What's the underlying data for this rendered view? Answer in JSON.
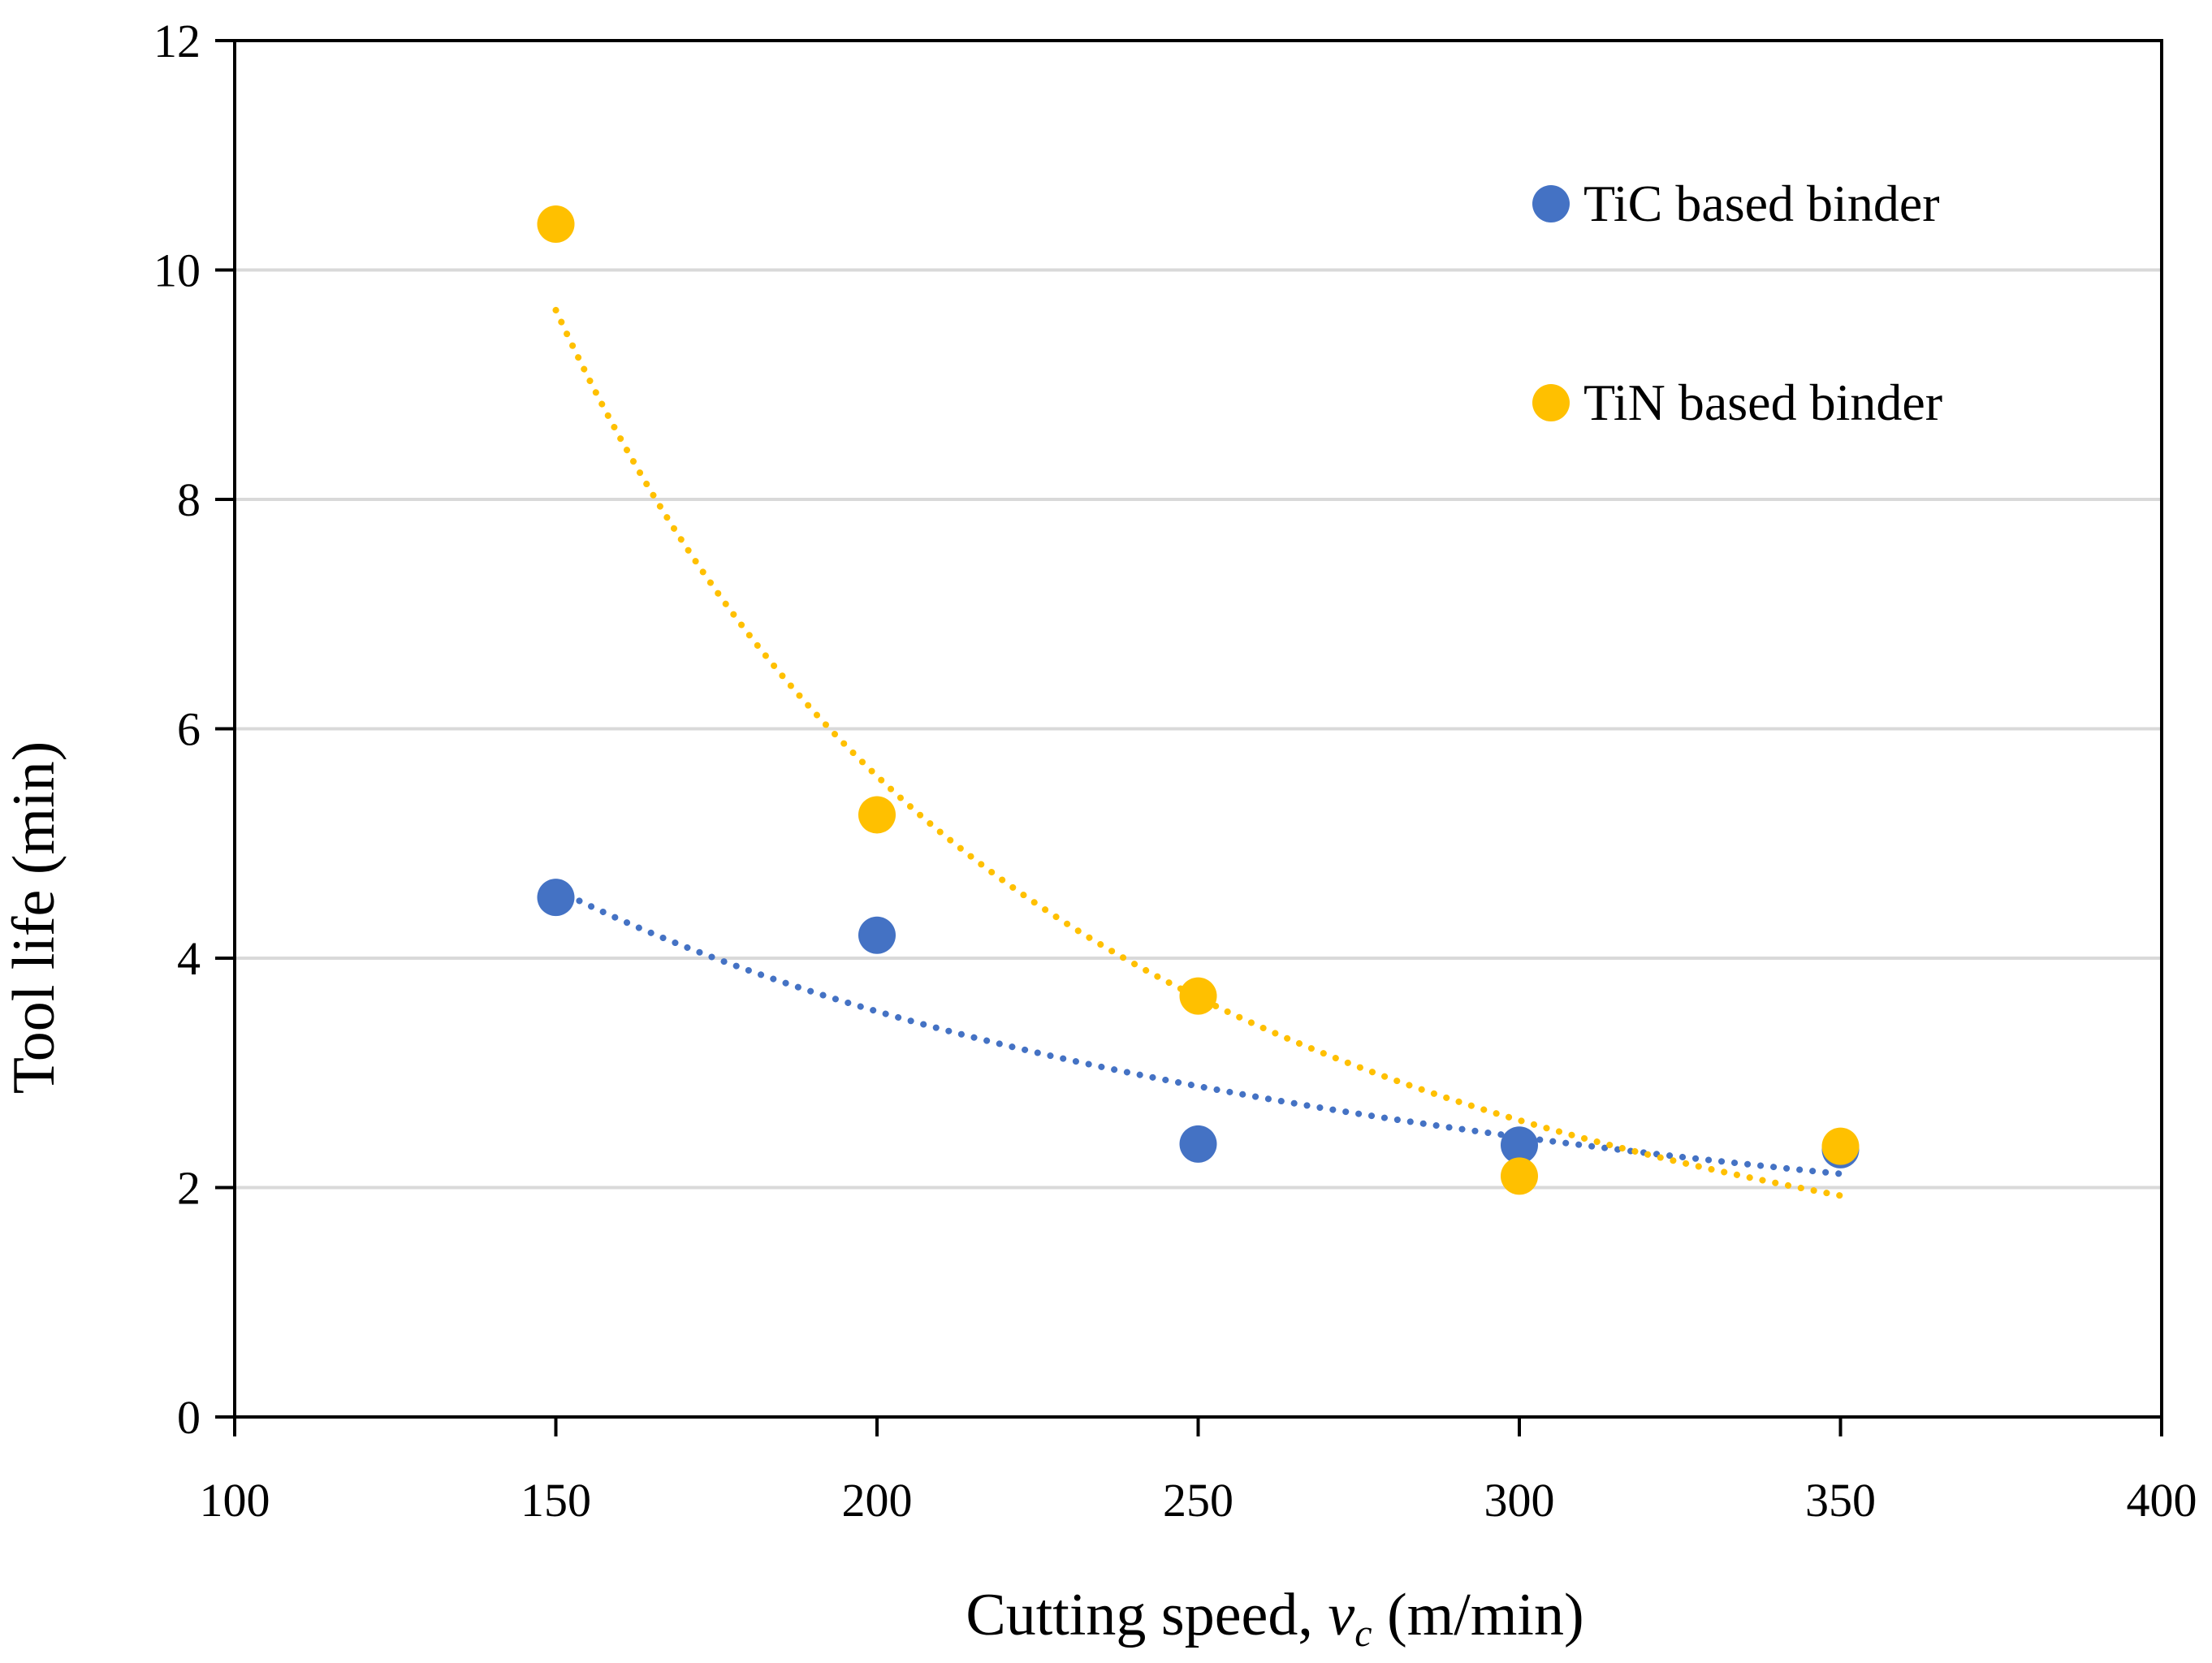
{
  "chart_data": {
    "type": "scatter",
    "title": "",
    "xlabel": {
      "prefix": "Cutting speed, ",
      "var": "v",
      "sub": "c",
      "suffix": " (m/min)"
    },
    "ylabel": "Tool life (min)",
    "xlim": [
      100,
      400
    ],
    "ylim": [
      0,
      12
    ],
    "xticks": [
      100,
      150,
      200,
      250,
      300,
      350,
      400
    ],
    "yticks": [
      0,
      2,
      4,
      6,
      8,
      10,
      12
    ],
    "xtick_labels": [
      "100",
      "150",
      "200",
      "250",
      "300",
      "350",
      "400"
    ],
    "ytick_labels": [
      "0",
      "2",
      "4",
      "6",
      "8",
      "10",
      "12"
    ],
    "grid": "horizontal",
    "legend_position": "top-right",
    "series": [
      {
        "name": "TiC based binder",
        "color": "#4472C4",
        "x": [
          150,
          200,
          250,
          300,
          350
        ],
        "y": [
          4.53,
          4.2,
          2.38,
          2.37,
          2.33
        ],
        "trendline": {
          "type": "power",
          "style": "dotted",
          "x_range": [
            150,
            350
          ],
          "y_start": 4.6,
          "y_end": 2.12
        }
      },
      {
        "name": "TiN based binder",
        "color": "#FFC000",
        "x": [
          150,
          200,
          250,
          300,
          350
        ],
        "y": [
          10.4,
          5.25,
          3.67,
          2.1,
          2.36
        ],
        "trendline": {
          "type": "power",
          "style": "dotted",
          "x_range": [
            150,
            350
          ],
          "y_start": 9.65,
          "y_end": 1.93
        }
      }
    ]
  }
}
